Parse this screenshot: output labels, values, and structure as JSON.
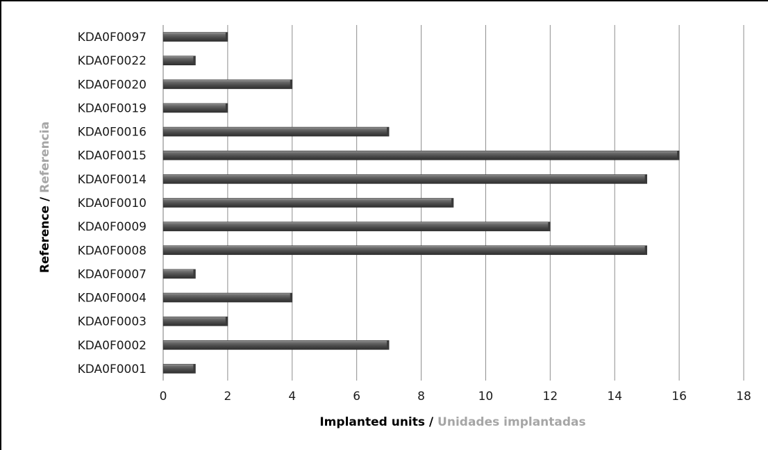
{
  "chart_data": {
    "type": "bar",
    "orientation": "horizontal",
    "categories": [
      "KDA0F0001",
      "KDA0F0002",
      "KDA0F0003",
      "KDA0F0004",
      "KDA0F0007",
      "KDA0F0008",
      "KDA0F0009",
      "KDA0F0010",
      "KDA0F0014",
      "KDA0F0015",
      "KDA0F0016",
      "KDA0F0019",
      "KDA0F0020",
      "KDA0F0022",
      "KDA0F0097"
    ],
    "values": [
      1,
      7,
      2,
      4,
      1,
      15,
      12,
      9,
      15,
      16,
      7,
      2,
      4,
      1,
      2
    ],
    "xlabel_primary": "Implanted units",
    "xlabel_separator": " / ",
    "xlabel_secondary": "Unidades implantadas",
    "ylabel_primary": "Reference",
    "ylabel_separator": " / ",
    "ylabel_secondary": "Referencia",
    "xlim": [
      0,
      18
    ],
    "xticks": [
      0,
      2,
      4,
      6,
      8,
      10,
      12,
      14,
      16,
      18
    ],
    "grid": "vertical",
    "legend": "none",
    "colors": {
      "bar": "#555555",
      "bar_highlight": "#9a9a9a",
      "bar_shadow": "#2f2f2f",
      "grid": "#8c8c8c",
      "label_primary": "#000000",
      "label_secondary": "#a6a6a6"
    }
  }
}
